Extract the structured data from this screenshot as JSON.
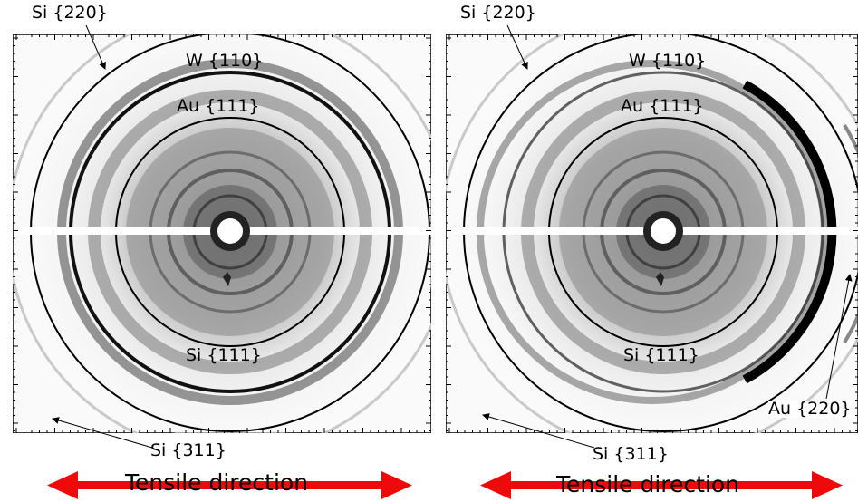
{
  "panels": [
    {
      "labels": {
        "si220": "Si {220}",
        "w110": "W {110}",
        "au111": "Au {111}",
        "si111": "Si {111}",
        "si311": "Si {311}"
      },
      "caption": "Tensile direction"
    },
    {
      "labels": {
        "si220": "Si {220}",
        "w110": "W {110}",
        "au111": "Au {111}",
        "si111": "Si {111}",
        "si311": "Si {311}",
        "au220": "Au {220}"
      },
      "caption": "Tensile direction"
    }
  ],
  "colors": {
    "arrow": "#ee0a0a",
    "ring": "#000000",
    "background": "#ffffff"
  }
}
